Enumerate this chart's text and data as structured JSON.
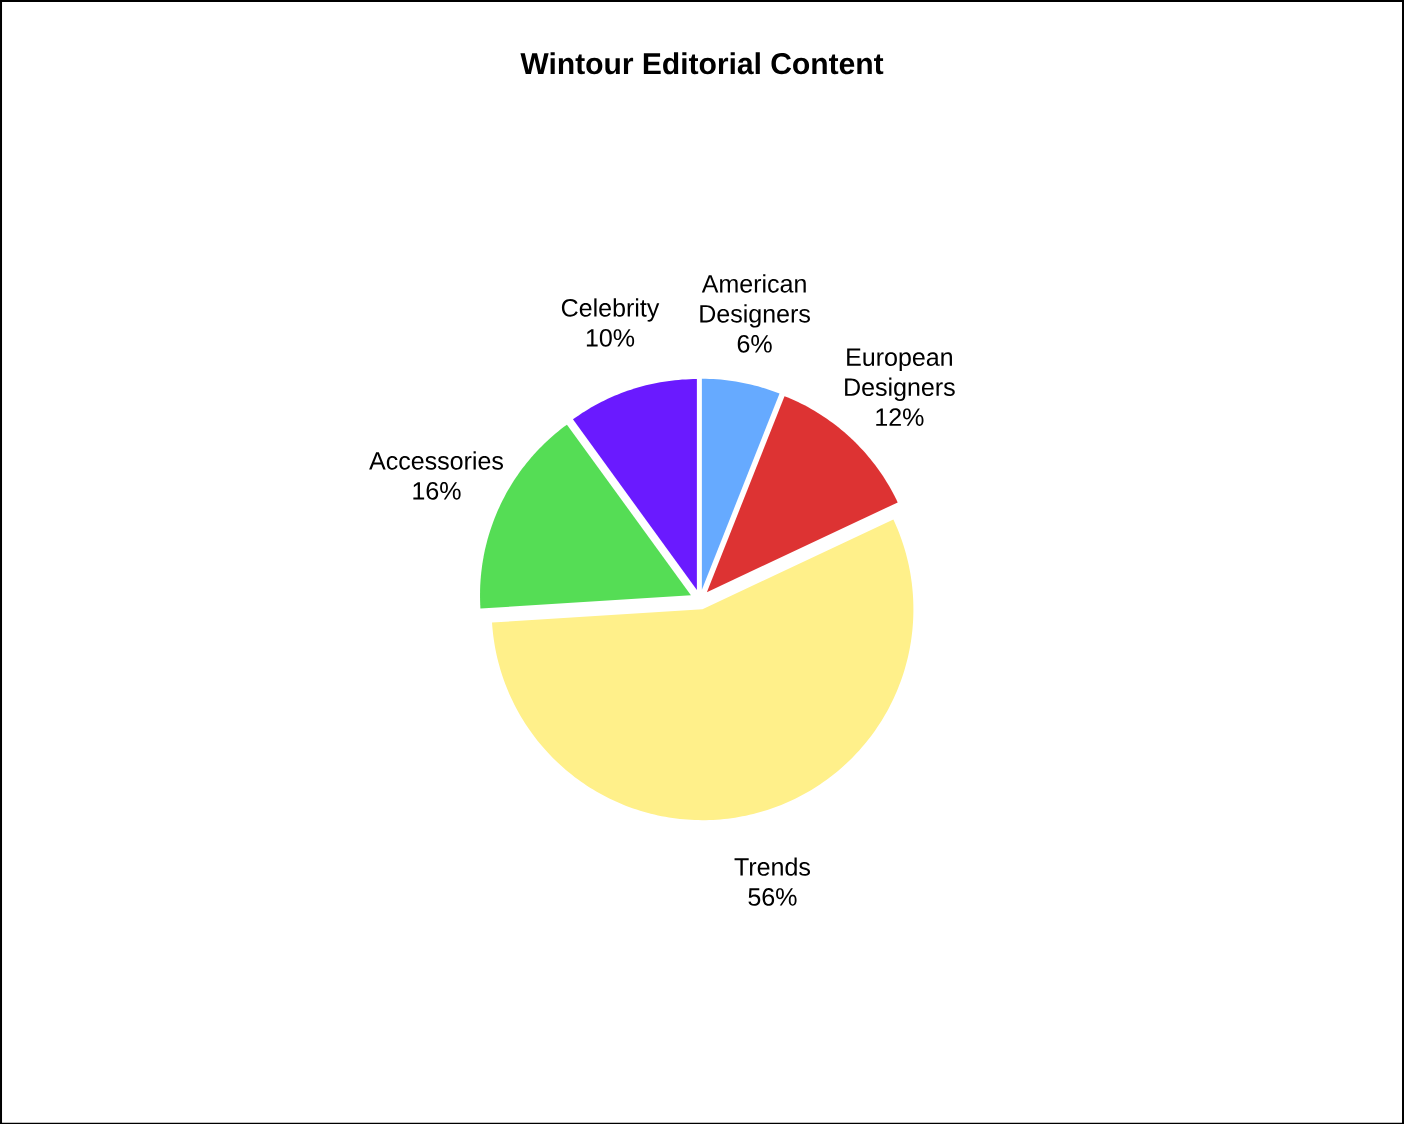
{
  "chart_data": {
    "type": "pie",
    "title": "Wintour Editorial Content",
    "categories": [
      "American Designers",
      "European Designers",
      "Trends",
      "Accessories",
      "Celebrity"
    ],
    "values": [
      6,
      12,
      56,
      16,
      10
    ],
    "value_labels": [
      "6%",
      "12%",
      "56%",
      "16%",
      "10%"
    ],
    "colors": [
      "#66aaff",
      "#dd3333",
      "#fff08a",
      "#55dd55",
      "#6a1aff"
    ]
  }
}
